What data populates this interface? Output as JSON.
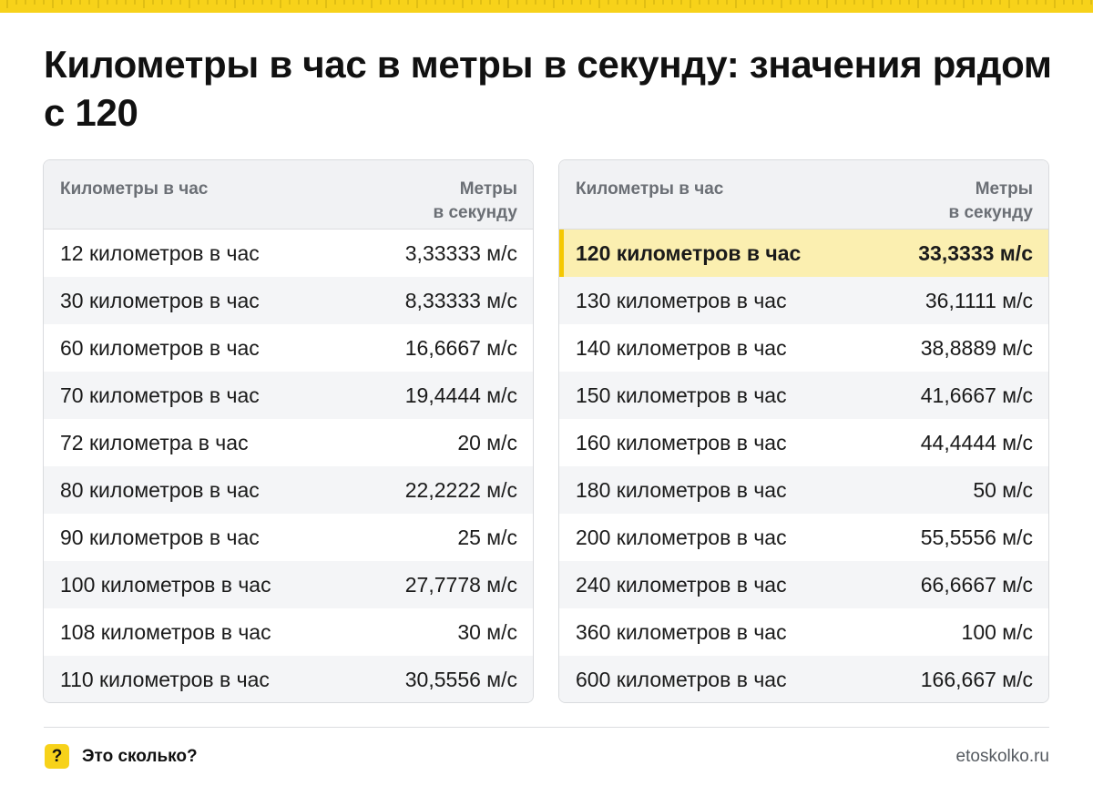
{
  "title": "Километры в час в метры в секунду: значения рядом с 120",
  "colors": {
    "accent": "#f7d21a",
    "highlight_row": "#fbefb0",
    "highlight_bar": "#f5c800"
  },
  "left_table": {
    "header": {
      "col1": "Километры в час",
      "col2_line1": "Метры",
      "col2_line2": "в секунду"
    },
    "rows": [
      {
        "kmh": "12 километров в час",
        "ms": "3,33333 м/с"
      },
      {
        "kmh": "30 километров в час",
        "ms": "8,33333 м/с"
      },
      {
        "kmh": "60 километров в час",
        "ms": "16,6667 м/с"
      },
      {
        "kmh": "70 километров в час",
        "ms": "19,4444 м/с"
      },
      {
        "kmh": "72 километра в час",
        "ms": "20 м/с"
      },
      {
        "kmh": "80 километров в час",
        "ms": "22,2222 м/с"
      },
      {
        "kmh": "90 километров в час",
        "ms": "25 м/с"
      },
      {
        "kmh": "100 километров в час",
        "ms": "27,7778 м/с"
      },
      {
        "kmh": "108 километров в час",
        "ms": "30 м/с"
      },
      {
        "kmh": "110 километров в час",
        "ms": "30,5556 м/с"
      }
    ]
  },
  "right_table": {
    "header": {
      "col1": "Километры в час",
      "col2_line1": "Метры",
      "col2_line2": "в секунду"
    },
    "rows": [
      {
        "kmh": "120 километров в час",
        "ms": "33,3333 м/с",
        "highlighted": true
      },
      {
        "kmh": "130 километров в час",
        "ms": "36,1111 м/с"
      },
      {
        "kmh": "140 километров в час",
        "ms": "38,8889 м/с"
      },
      {
        "kmh": "150 километров в час",
        "ms": "41,6667 м/с"
      },
      {
        "kmh": "160 километров в час",
        "ms": "44,4444 м/с"
      },
      {
        "kmh": "180 километров в час",
        "ms": "50 м/с"
      },
      {
        "kmh": "200 километров в час",
        "ms": "55,5556 м/с"
      },
      {
        "kmh": "240 километров в час",
        "ms": "66,6667 м/с"
      },
      {
        "kmh": "360 километров в час",
        "ms": "100 м/с"
      },
      {
        "kmh": "600 километров в час",
        "ms": "166,667 м/с"
      }
    ]
  },
  "footer": {
    "badge": "?",
    "badge_icon": "question-icon",
    "brand": "Это сколько?",
    "site": "etoskolko.ru"
  }
}
